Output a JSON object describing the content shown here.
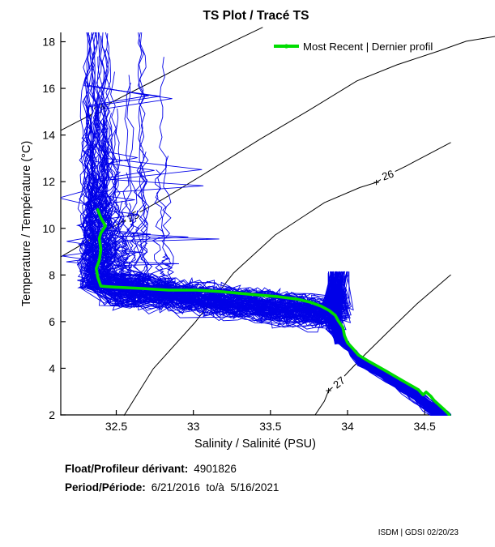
{
  "title": "TS Plot / Tracé TS",
  "legend": {
    "most_recent_label": "Most Recent | Dernier profil",
    "swatch_color": "#00dd00"
  },
  "footer": {
    "float_label": "Float/Profileur dérivant:",
    "float_value": "4901826",
    "period_label": "Period/Période:",
    "period_value": "6/21/2016  to/à  5/16/2021",
    "credit": "ISDM | GDSI 02/20/23"
  },
  "chart_data": {
    "type": "line",
    "title": "TS Plot / Tracé TS",
    "xlabel": "Salinity / Salinité (PSU)",
    "ylabel": "Temperature / Température (°C)",
    "xlim": [
      32.14,
      34.67
    ],
    "ylim": [
      2.0,
      18.4
    ],
    "xticks": [
      32.5,
      33,
      33.5,
      34,
      34.5
    ],
    "yticks": [
      2,
      4,
      6,
      8,
      10,
      12,
      14,
      16,
      18
    ],
    "grid": false,
    "legend_position": "top-right-inside",
    "colors": {
      "profiles": "#0000e8",
      "most_recent": "#00dd00",
      "contours": "#000000",
      "axes": "#000000"
    },
    "density_contours": [
      {
        "label": "24",
        "label_at": [
          32.393,
          15.13
        ],
        "marker_at": [
          32.324,
          14.82
        ],
        "label_rotation_deg": -27,
        "points": [
          [
            32.14,
            14.2
          ],
          [
            32.26,
            14.61
          ],
          [
            32.324,
            14.82
          ],
          [
            32.39,
            15.13
          ],
          [
            32.58,
            15.78
          ],
          [
            32.75,
            16.35
          ],
          [
            32.92,
            16.93
          ],
          [
            33.1,
            17.5
          ],
          [
            33.27,
            18.05
          ],
          [
            33.45,
            18.62
          ]
        ]
      },
      {
        "label": "25",
        "label_at": [
          32.608,
          10.51
        ],
        "marker_at": [
          32.545,
          10.3
        ],
        "label_rotation_deg": -28,
        "points": [
          [
            32.14,
            8.78
          ],
          [
            32.43,
            9.89
          ],
          [
            32.545,
            10.3
          ],
          [
            32.8,
            11.24
          ],
          [
            33.11,
            12.49
          ],
          [
            33.43,
            13.81
          ],
          [
            33.75,
            15.06
          ],
          [
            34.06,
            16.32
          ],
          [
            34.32,
            17.01
          ],
          [
            34.59,
            17.6
          ],
          [
            34.77,
            18.02
          ],
          [
            34.96,
            18.23
          ]
        ]
      },
      {
        "label": "26",
        "label_at": [
          34.261,
          12.28
        ],
        "marker_at": [
          34.187,
          11.97
        ],
        "label_rotation_deg": -19,
        "points": [
          [
            32.55,
            1.97
          ],
          [
            32.74,
            3.98
          ],
          [
            33.01,
            5.96
          ],
          [
            33.26,
            8.08
          ],
          [
            33.53,
            9.71
          ],
          [
            33.85,
            11.1
          ],
          [
            34.08,
            11.75
          ],
          [
            34.187,
            11.97
          ],
          [
            34.26,
            12.28
          ],
          [
            34.38,
            12.67
          ],
          [
            34.67,
            13.68
          ]
        ]
      },
      {
        "label": "27",
        "label_at": [
          33.945,
          3.39
        ],
        "marker_at": [
          33.877,
          3.04
        ],
        "label_rotation_deg": -38,
        "points": [
          [
            33.79,
            2.0
          ],
          [
            33.85,
            2.59
          ],
          [
            33.877,
            3.04
          ],
          [
            33.94,
            3.39
          ],
          [
            34.01,
            3.88
          ],
          [
            34.1,
            4.5
          ],
          [
            34.27,
            5.61
          ],
          [
            34.45,
            6.76
          ],
          [
            34.67,
            8.01
          ]
        ]
      }
    ],
    "most_recent_profile": {
      "name": "Most Recent | Dernier profil",
      "points": [
        [
          32.38,
          10.8
        ],
        [
          32.4,
          10.45
        ],
        [
          32.43,
          10.1
        ],
        [
          32.4,
          9.8
        ],
        [
          32.39,
          9.57
        ],
        [
          32.4,
          9.1
        ],
        [
          32.39,
          8.63
        ],
        [
          32.37,
          8.28
        ],
        [
          32.38,
          7.9
        ],
        [
          32.4,
          7.52
        ],
        [
          32.49,
          7.48
        ],
        [
          32.67,
          7.42
        ],
        [
          32.84,
          7.35
        ],
        [
          33.02,
          7.35
        ],
        [
          33.19,
          7.28
        ],
        [
          33.37,
          7.17
        ],
        [
          33.55,
          7.07
        ],
        [
          33.67,
          6.97
        ],
        [
          33.76,
          6.83
        ],
        [
          33.83,
          6.66
        ],
        [
          33.88,
          6.48
        ],
        [
          33.92,
          6.27
        ],
        [
          33.94,
          6.03
        ],
        [
          33.97,
          5.75
        ],
        [
          33.98,
          5.4
        ],
        [
          34.0,
          5.09
        ],
        [
          34.03,
          4.88
        ],
        [
          34.07,
          4.57
        ],
        [
          34.14,
          4.29
        ],
        [
          34.25,
          3.88
        ],
        [
          34.35,
          3.49
        ],
        [
          34.46,
          3.08
        ],
        [
          34.49,
          2.86
        ],
        [
          34.51,
          2.98
        ],
        [
          34.54,
          2.8
        ],
        [
          34.56,
          2.63
        ],
        [
          34.63,
          2.21
        ],
        [
          34.66,
          2.0
        ]
      ]
    },
    "profile_ensemble": {
      "style": "procedural-spaghetti",
      "count": 115,
      "seed": 12,
      "surface_salinity_core_psu": [
        32.29,
        32.46
      ],
      "surface_salinity_outer_psu": [
        32.44,
        32.85
      ],
      "surface_temp_top_c": [
        8.8,
        18.4
      ],
      "mixed_layer_base_temp_c": 7.45,
      "band_salinity_psu": [
        32.47,
        33.95
      ],
      "band_temp_c": [
        5.55,
        8.05
      ],
      "hook_salinity_psu": 33.9,
      "hook_temp_max_c": 8.15,
      "deep_curve": [
        [
          33.99,
          5.2
        ],
        [
          34.04,
          4.8
        ],
        [
          34.09,
          4.45
        ],
        [
          34.18,
          4.1
        ],
        [
          34.28,
          3.7
        ],
        [
          34.39,
          3.3
        ],
        [
          34.47,
          2.9
        ],
        [
          34.55,
          2.5
        ],
        [
          34.61,
          2.2
        ],
        [
          34.65,
          2.0
        ]
      ],
      "deep_spread_psu": 0.1
    }
  }
}
